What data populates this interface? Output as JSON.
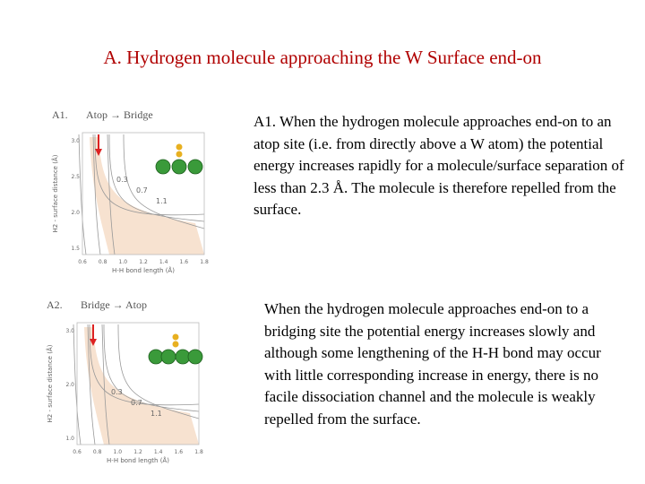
{
  "title": "A. Hydrogen molecule approaching the W Surface end-on",
  "panels": [
    {
      "label": "A1.",
      "caption": "Atop → Bridge",
      "ylabel": "H2 - surface distance (Å)",
      "xlabel": "H-H bond length (Å)",
      "xticks": [
        "0.6",
        "0.8",
        "1.0",
        "1.2",
        "1.4",
        "1.6",
        "1.8"
      ],
      "yticks": [
        "3.0",
        "2.5",
        "2.0",
        "1.5"
      ],
      "contours": [
        "0.3",
        "0.7",
        "1.1"
      ]
    },
    {
      "label": "A2.",
      "caption": "Bridge → Atop",
      "ylabel": "H2 - surface distance (Å)",
      "xlabel": "H-H bond length (Å)",
      "xticks": [
        "0.6",
        "0.8",
        "1.0",
        "1.2",
        "1.4",
        "1.6",
        "1.8"
      ],
      "yticks": [
        "3.0",
        "2.0",
        "1.0"
      ],
      "contours": [
        "0.3",
        "0.7",
        "1.1"
      ]
    }
  ],
  "paragraphs": [
    "A1. When the hydrogen molecule approaches end-on to an atop site (i.e. from directly above a W atom) the potential energy increases rapidly for a molecule/surface separation of less than 2.3 Å. The molecule is therefore repelled from the surface.",
    "When the hydrogen molecule approaches end-on to a bridging site the potential energy increases slowly and although some lengthening of the H-H bond may occur with little corresponding increase in energy, there is no facile dissociation channel and the molecule is weakly repelled from the surface."
  ]
}
